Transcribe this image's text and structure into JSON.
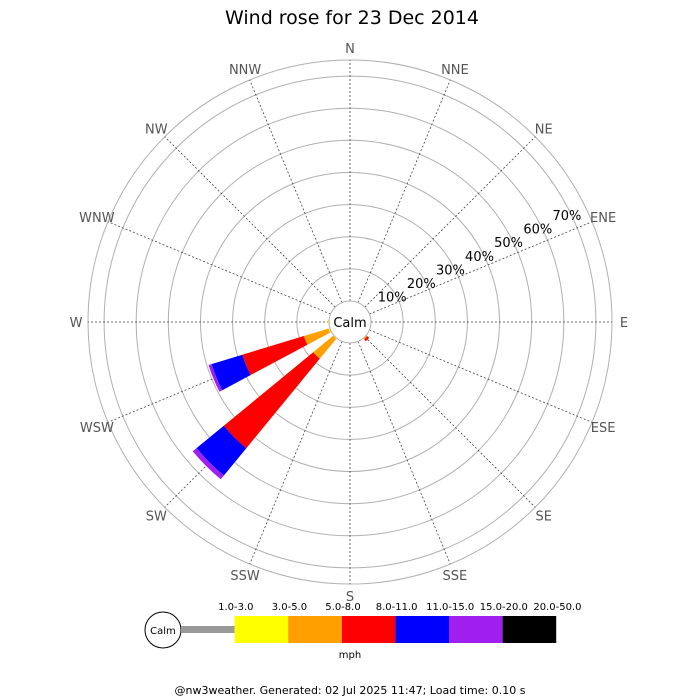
{
  "chart_data": {
    "type": "wind-rose",
    "title": "Wind rose for 23 Dec 2014",
    "calm_label": "Calm",
    "directions": [
      "N",
      "NNE",
      "NE",
      "ENE",
      "E",
      "ESE",
      "SE",
      "SSE",
      "S",
      "SSW",
      "SW",
      "WSW",
      "W",
      "WNW",
      "NW",
      "NNW"
    ],
    "radial_ticks": [
      {
        "value": 10,
        "label": "10%"
      },
      {
        "value": 20,
        "label": "20%"
      },
      {
        "value": 30,
        "label": "30%"
      },
      {
        "value": 40,
        "label": "40%"
      },
      {
        "value": 50,
        "label": "50%"
      },
      {
        "value": 60,
        "label": "60%"
      },
      {
        "value": 70,
        "label": "70%"
      }
    ],
    "rmax": 75,
    "speed_bins": [
      {
        "label": "1.0-3.0",
        "color": "#999999"
      },
      {
        "label": "3.0-5.0",
        "color": "#ffff00"
      },
      {
        "label": "5.0-8.0",
        "color": "#ff9f00"
      },
      {
        "label": "8.0-11.0",
        "color": "#ff0000"
      },
      {
        "label": "11.0-15.0",
        "color": "#0000ff"
      },
      {
        "label": "15.0-20.0",
        "color": "#9f1fef"
      },
      {
        "label": "20.0-50.0",
        "color": "#000000"
      }
    ],
    "unit": "mph",
    "frequencies": {
      "SSE": [
        0.0,
        0.0,
        0.0,
        0.0,
        0.0,
        0.0,
        0.0
      ],
      "SE": [
        0.0,
        0.1,
        0.4,
        0.7,
        0.0,
        0.0,
        0.0
      ],
      "SW": [
        0.0,
        0.3,
        8.0,
        36.0,
        11.0,
        1.5,
        0.0
      ],
      "WSW": [
        0.0,
        0.5,
        8.0,
        20.0,
        10.0,
        1.0,
        0.0
      ],
      "W": [
        0.0,
        0.4,
        0.0,
        0.0,
        0.0,
        0.0,
        0.0
      ]
    }
  },
  "footer": "@nw3weather. Generated: 02 Jul 2025 11:47; Load time: 0.10 s"
}
